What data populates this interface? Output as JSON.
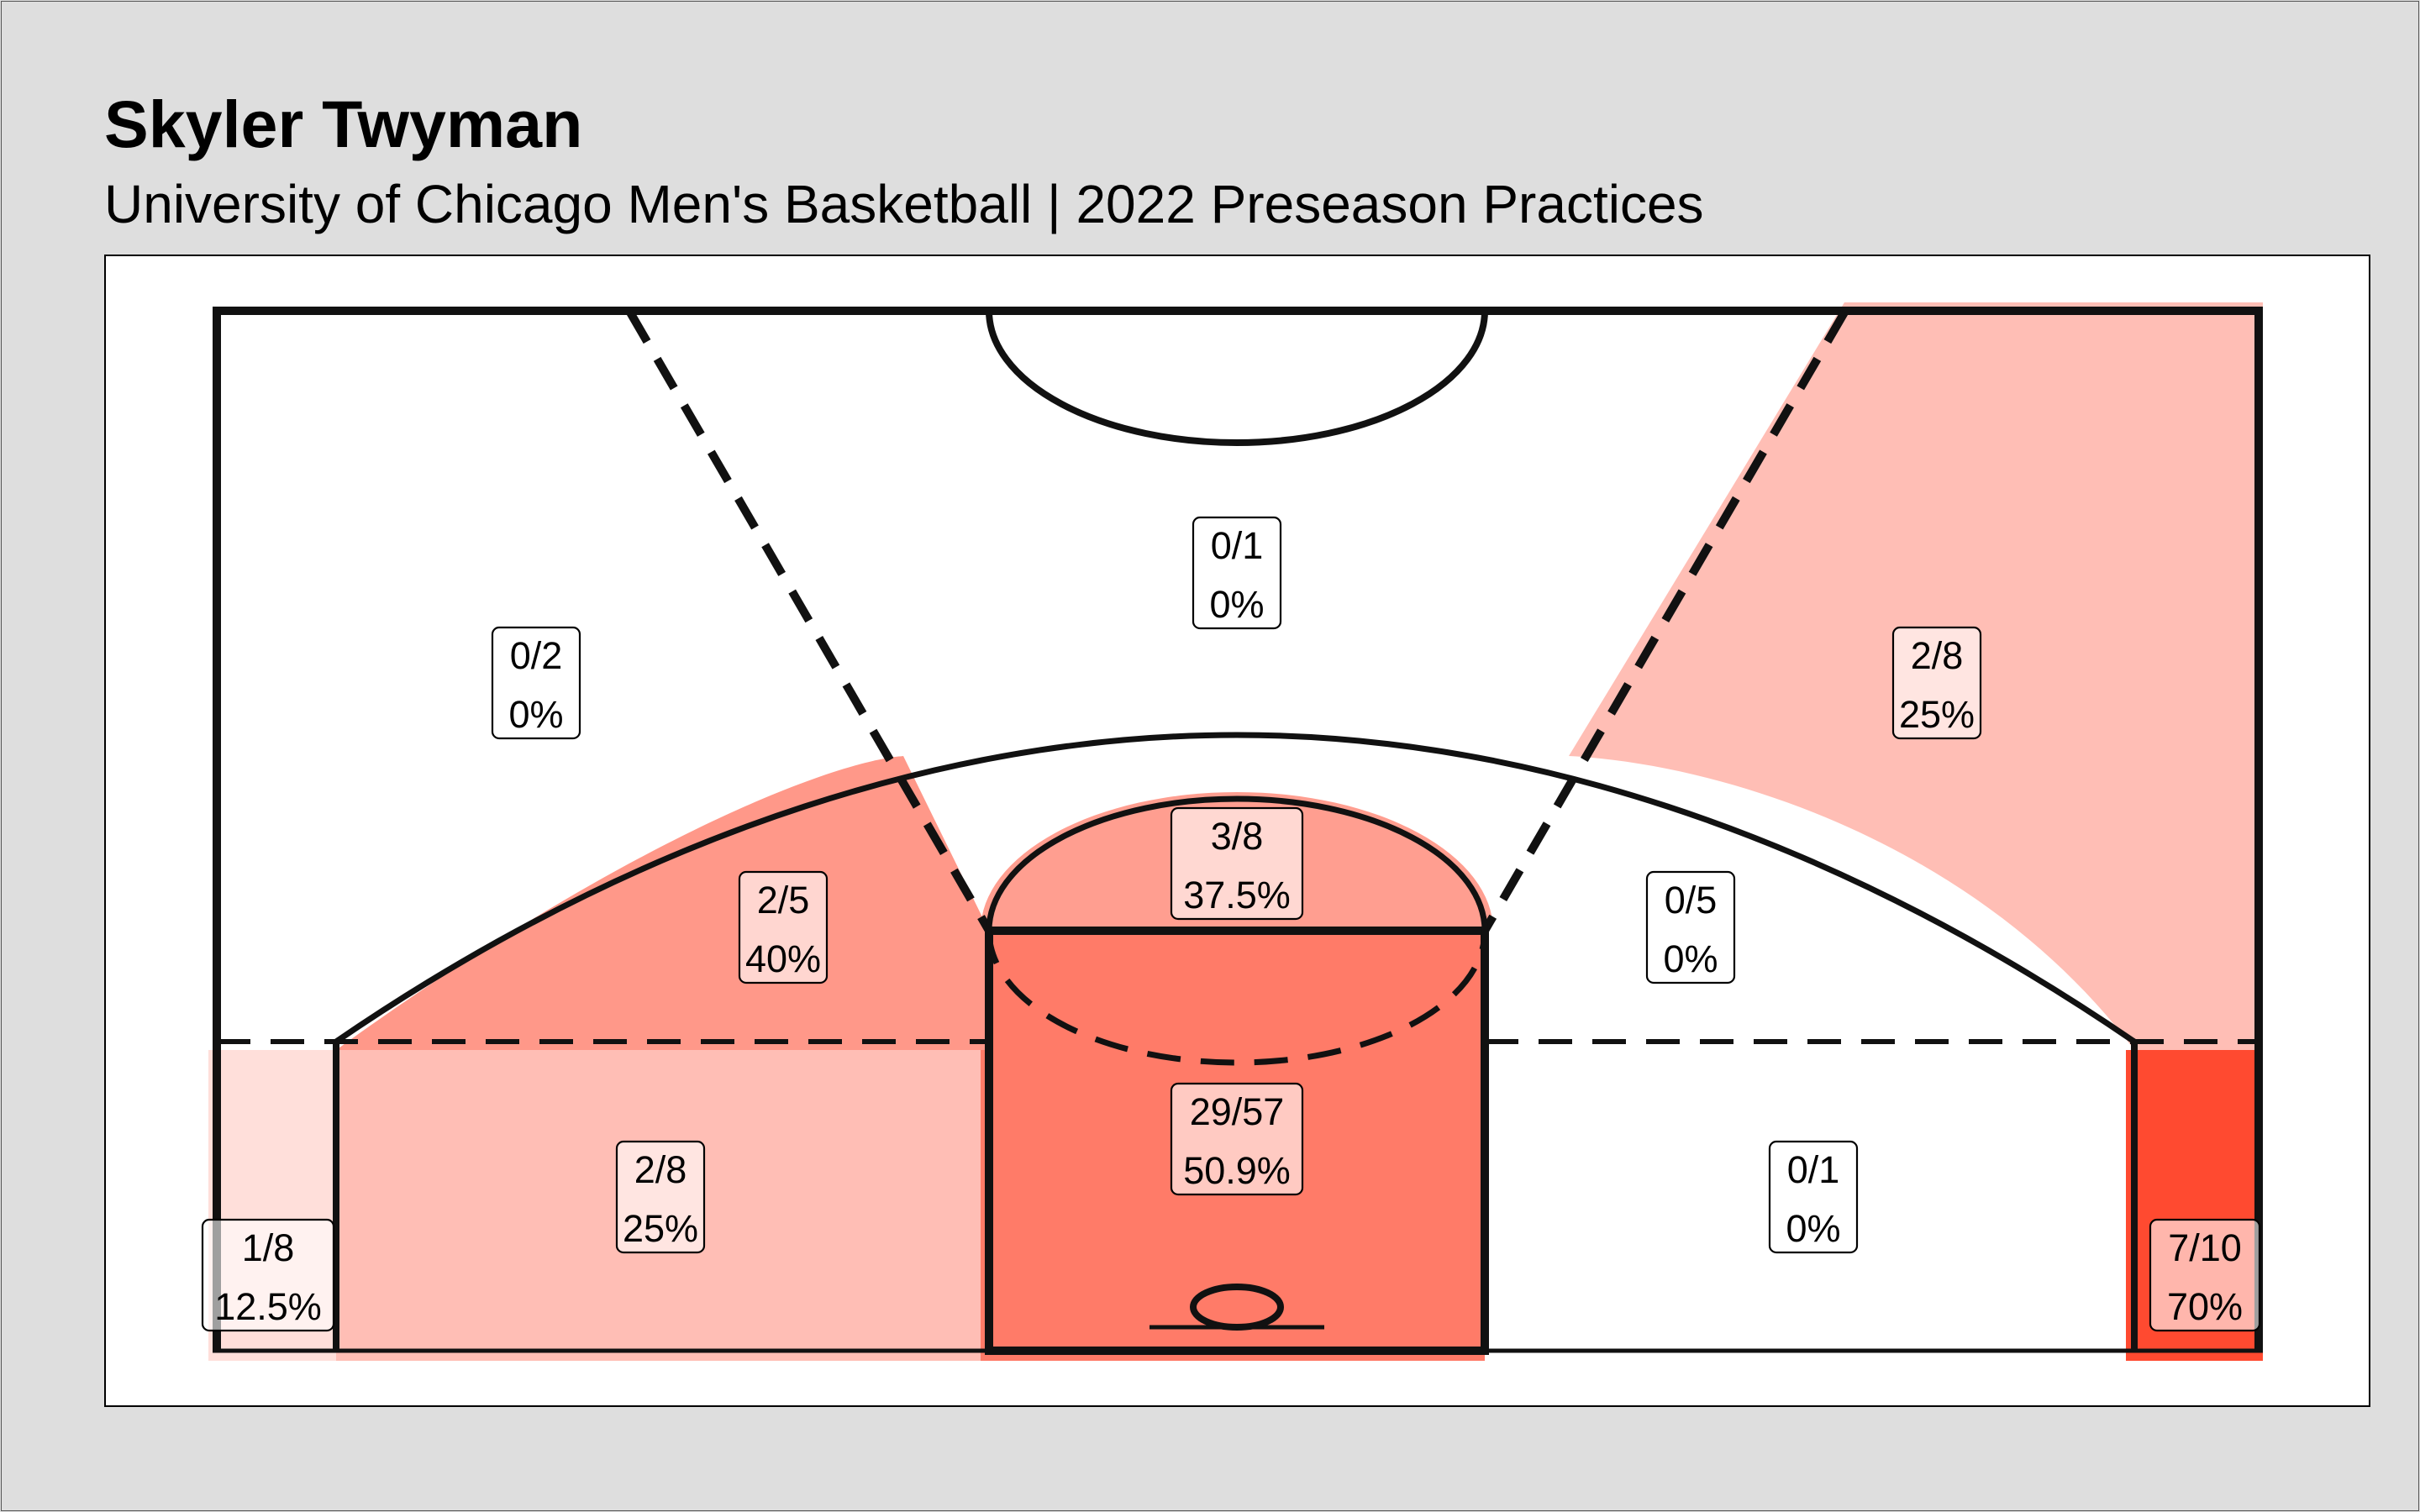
{
  "chart_data": {
    "type": "heatmap",
    "title": "Skyler Twyman",
    "subtitle": "University of Chicago Men's Basketball | 2022 Preseason Practices",
    "color_scale": {
      "low": "#ffffff",
      "high": "#ff4a30"
    },
    "zones": [
      {
        "id": "restricted-paint",
        "made": 29,
        "attempts": 57,
        "fraction": "29/57",
        "percent": "50.9%",
        "pct": 50.9
      },
      {
        "id": "short-mid-center",
        "made": 3,
        "attempts": 8,
        "fraction": "3/8",
        "percent": "37.5%",
        "pct": 37.5
      },
      {
        "id": "mid-left-wing",
        "made": 2,
        "attempts": 5,
        "fraction": "2/5",
        "percent": "40%",
        "pct": 40
      },
      {
        "id": "mid-right-wing",
        "made": 0,
        "attempts": 5,
        "fraction": "0/5",
        "percent": "0%",
        "pct": 0
      },
      {
        "id": "mid-left-baseline",
        "made": 2,
        "attempts": 8,
        "fraction": "2/8",
        "percent": "25%",
        "pct": 25
      },
      {
        "id": "mid-right-baseline",
        "made": 0,
        "attempts": 1,
        "fraction": "0/1",
        "percent": "0%",
        "pct": 0
      },
      {
        "id": "left-corner-three",
        "made": 1,
        "attempts": 8,
        "fraction": "1/8",
        "percent": "12.5%",
        "pct": 12.5
      },
      {
        "id": "right-corner-three",
        "made": 7,
        "attempts": 10,
        "fraction": "7/10",
        "percent": "70%",
        "pct": 70
      },
      {
        "id": "left-wing-three",
        "made": 0,
        "attempts": 2,
        "fraction": "0/2",
        "percent": "0%",
        "pct": 0
      },
      {
        "id": "top-three",
        "made": 0,
        "attempts": 1,
        "fraction": "0/1",
        "percent": "0%",
        "pct": 0
      },
      {
        "id": "right-wing-three",
        "made": 2,
        "attempts": 8,
        "fraction": "2/8",
        "percent": "25%",
        "pct": 25
      }
    ],
    "legend": "none"
  },
  "colors": {
    "background": "#dedede",
    "panel": "#ffffff",
    "court_lines": "#111111"
  }
}
